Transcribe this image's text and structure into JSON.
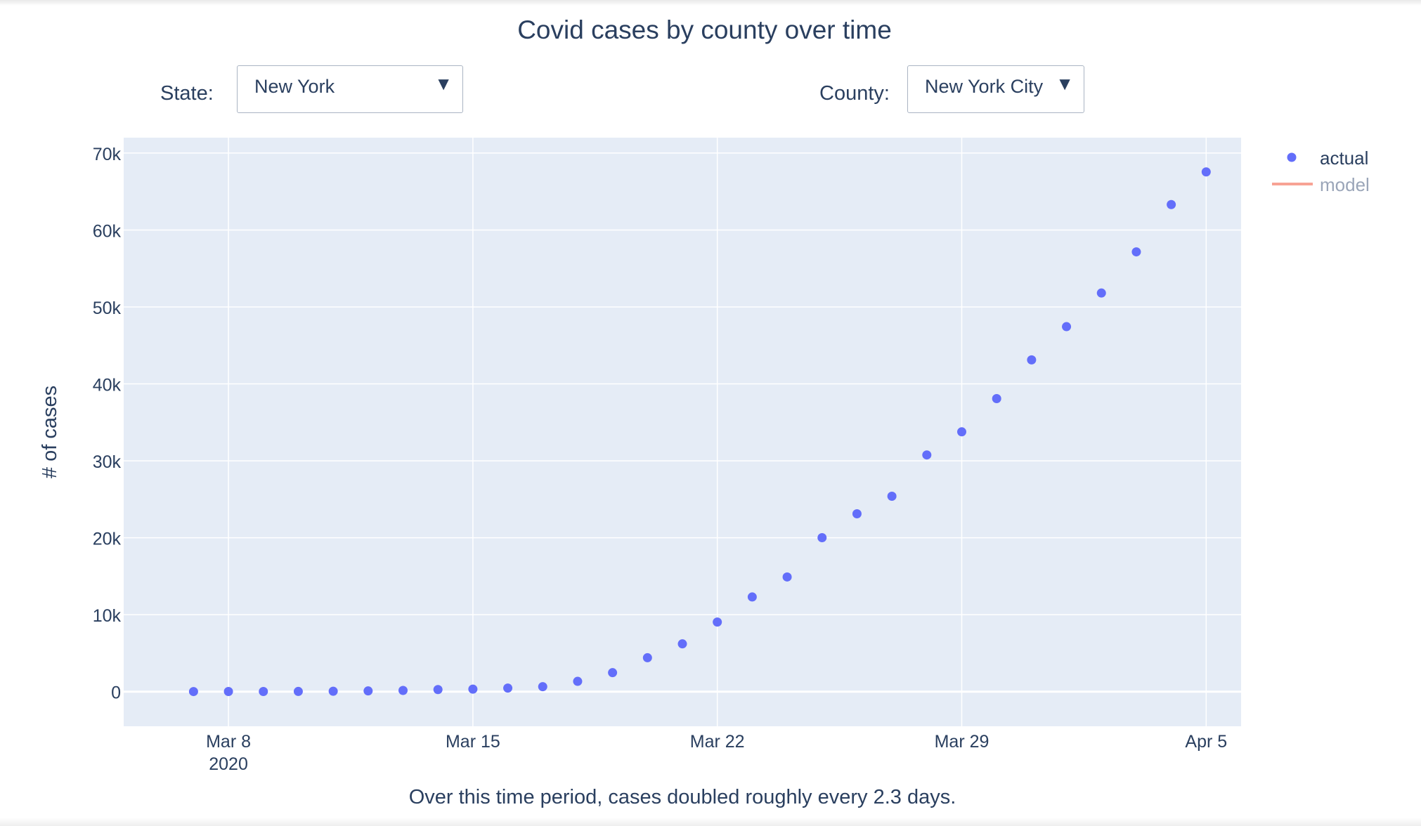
{
  "title": "Covid cases by county over time",
  "controls": {
    "state_label": "State:",
    "state_value": "New York",
    "county_label": "County:",
    "county_value": "New York City",
    "caret": "▼"
  },
  "caption": "Over this time period, cases doubled roughly every 2.3 days.",
  "colors": {
    "plot_bg": "#e5ecf6",
    "actual": "#636efa",
    "model": "#f7a394",
    "text": "#2a3f5f"
  },
  "chart_data": {
    "type": "scatter",
    "title": "Covid cases by county over time",
    "xlabel": "",
    "ylabel": "# of cases",
    "x_type": "date",
    "x_start": "2020-03-07",
    "xlim": [
      "2020-03-05",
      "2020-04-06"
    ],
    "ylim": [
      -4500,
      72000
    ],
    "grid": true,
    "legend_position": "top-right",
    "x_ticks": [
      {
        "date": "2020-03-08",
        "label": "Mar 8",
        "sublabel": "2020"
      },
      {
        "date": "2020-03-15",
        "label": "Mar 15",
        "sublabel": ""
      },
      {
        "date": "2020-03-22",
        "label": "Mar 22",
        "sublabel": ""
      },
      {
        "date": "2020-03-29",
        "label": "Mar 29",
        "sublabel": ""
      },
      {
        "date": "2020-04-05",
        "label": "Apr 5",
        "sublabel": ""
      }
    ],
    "y_ticks": [
      {
        "value": 0,
        "label": "0"
      },
      {
        "value": 10000,
        "label": "10k"
      },
      {
        "value": 20000,
        "label": "20k"
      },
      {
        "value": 30000,
        "label": "30k"
      },
      {
        "value": 40000,
        "label": "40k"
      },
      {
        "value": 50000,
        "label": "50k"
      },
      {
        "value": 60000,
        "label": "60k"
      },
      {
        "value": 70000,
        "label": "70k"
      }
    ],
    "series": [
      {
        "name": "actual",
        "kind": "markers",
        "x": [
          "2020-03-07",
          "2020-03-08",
          "2020-03-09",
          "2020-03-10",
          "2020-03-11",
          "2020-03-12",
          "2020-03-13",
          "2020-03-14",
          "2020-03-15",
          "2020-03-16",
          "2020-03-17",
          "2020-03-18",
          "2020-03-19",
          "2020-03-20",
          "2020-03-21",
          "2020-03-22",
          "2020-03-23",
          "2020-03-24",
          "2020-03-25",
          "2020-03-26",
          "2020-03-27",
          "2020-03-28",
          "2020-03-29",
          "2020-03-30",
          "2020-03-31",
          "2020-04-01",
          "2020-04-02",
          "2020-04-03",
          "2020-04-04",
          "2020-04-05"
        ],
        "values": [
          12,
          19,
          20,
          25,
          52,
          95,
          154,
          269,
          329,
          463,
          644,
          1339,
          2469,
          4408,
          6211,
          9045,
          12305,
          14904,
          20011,
          23112,
          25398,
          30765,
          33768,
          38087,
          43119,
          47439,
          51809,
          57159,
          63306,
          67551
        ]
      },
      {
        "name": "model",
        "kind": "line",
        "legend_only": true,
        "x": [],
        "values": []
      }
    ]
  }
}
